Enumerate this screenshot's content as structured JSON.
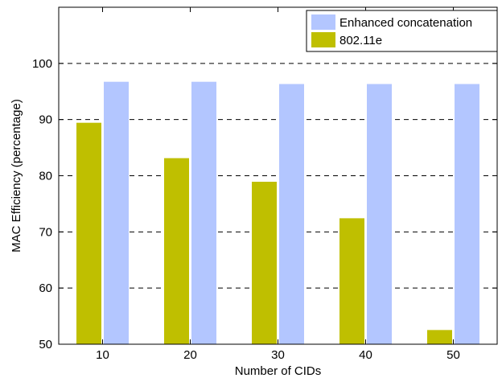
{
  "chart_data": {
    "type": "bar",
    "xlabel": "Number of CIDs",
    "ylabel": "MAC Efficiency (percentage)",
    "categories": [
      "10",
      "20",
      "30",
      "40",
      "50"
    ],
    "series": [
      {
        "name": "802.11e",
        "values": [
          89.5,
          83.2,
          79.0,
          72.5,
          52.6
        ],
        "color": "#bfbf00"
      },
      {
        "name": "Enhanced concatenation",
        "values": [
          96.8,
          96.8,
          96.4,
          96.4,
          96.4
        ],
        "color": "#b3c6ff"
      }
    ],
    "ylim": [
      50,
      110
    ],
    "yticks": [
      50,
      60,
      70,
      80,
      90,
      100
    ],
    "grid": "y-dashed",
    "legend_position": "top-right"
  }
}
